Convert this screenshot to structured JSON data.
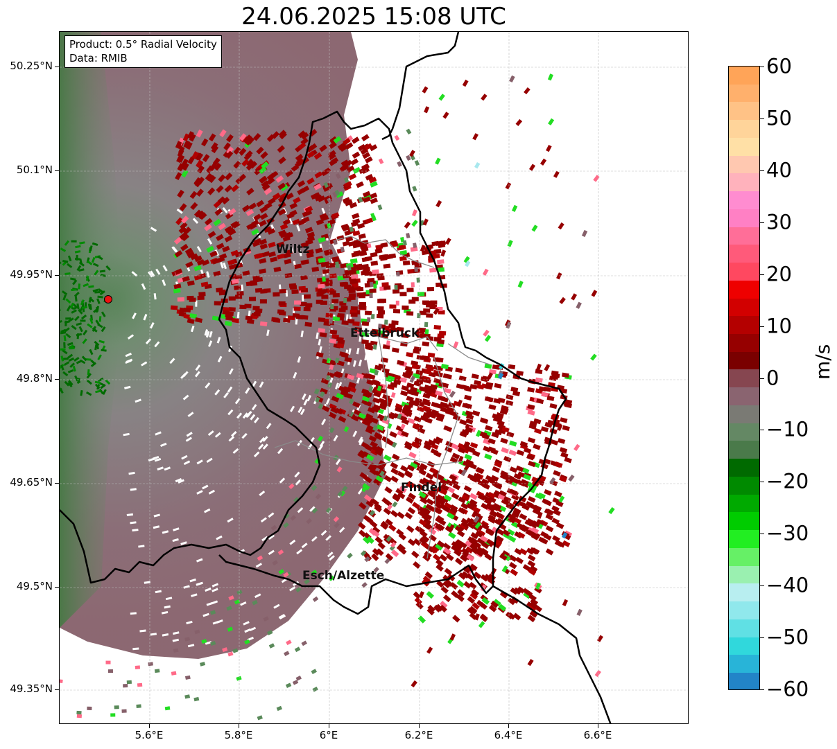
{
  "title": "24.06.2025 15:08 UTC",
  "info": {
    "product": "Product: 0.5° Radial Velocity",
    "data": "Data: RMIB"
  },
  "lat_labels": [
    "50.25°N",
    "50.1°N",
    "49.95°N",
    "49.8°N",
    "49.65°N",
    "49.5°N",
    "49.35°N"
  ],
  "lon_labels": [
    "5.6°E",
    "5.8°E",
    "6°E",
    "6.2°E",
    "6.4°E",
    "6.6°E"
  ],
  "cities": [
    "Wiltz",
    "Ettelbruck",
    "Findel",
    "Esch/Alzette"
  ],
  "colorbar": {
    "unit": "m/s",
    "ticks": [
      "60",
      "50",
      "40",
      "30",
      "20",
      "10",
      "0",
      "−10",
      "−20",
      "−30",
      "−40",
      "−50",
      "−60"
    ],
    "min": -60,
    "max": 60,
    "colors_top_to_bottom": [
      "#ffa458",
      "#ffb06c",
      "#ffc286",
      "#ffd49a",
      "#ffe0a6",
      "#ffc8b0",
      "#ffb2bc",
      "#ff8cd0",
      "#ff80c4",
      "#ff6e98",
      "#ff5a7a",
      "#ff4860",
      "#ee0000",
      "#d20000",
      "#b40000",
      "#960000",
      "#7a0000",
      "#864650",
      "#8a6470",
      "#7a7a74",
      "#648864",
      "#4a7a4a",
      "#006a00",
      "#008a00",
      "#00aa00",
      "#00cc00",
      "#22ee22",
      "#66f066",
      "#9af0b0",
      "#b8eef0",
      "#90e8ec",
      "#60e0e4",
      "#30d8dc",
      "#28b4d8",
      "#2284c8"
    ]
  },
  "radar_marker_color": "#ee1111",
  "colors": {
    "velocity_grey": "#8a7c80",
    "inbound_green": "#5a8a5a",
    "outbound_red": "#960000",
    "pink": "#ff6a88",
    "bright_green": "#22dd22",
    "blue": "#2284c8"
  }
}
